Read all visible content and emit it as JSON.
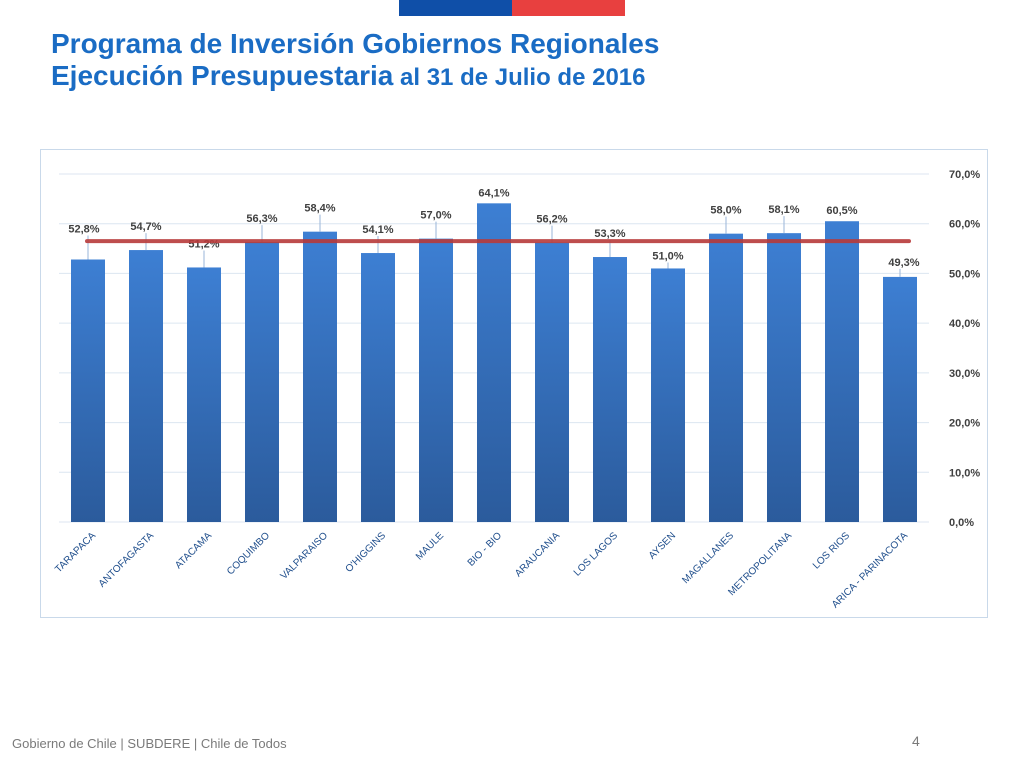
{
  "header": {
    "title_line1": "Programa de Inversión Gobiernos Regionales",
    "title_line2_bold": "Ejecución Presupuestaria",
    "title_line2_rest": " al 31 de Julio de 2016"
  },
  "colors": {
    "title": "#1a6cc4",
    "bar": "#3a78c9",
    "average_line": "#b83a3a",
    "flag_blue": "#0f4fa8",
    "flag_red": "#e8403f"
  },
  "chart_data": {
    "type": "bar",
    "title": "",
    "categories": [
      "TARAPACA",
      "ANTOFAGASTA",
      "ATACAMA",
      "COQUIMBO",
      "VALPARAISO",
      "O'HIGGINS",
      "MAULE",
      "BIO - BIO",
      "ARAUCANIA",
      "LOS LAGOS",
      "AYSEN",
      "MAGALLANES",
      "METROPOLITANA",
      "LOS RIOS",
      "ARICA - PARINACOTA"
    ],
    "values": [
      52.8,
      54.7,
      51.2,
      56.3,
      58.4,
      54.1,
      57.0,
      64.1,
      56.2,
      53.3,
      51.0,
      58.0,
      58.1,
      60.5,
      49.3
    ],
    "value_labels": [
      "52,8%",
      "54,7%",
      "51,2%",
      "56,3%",
      "58,4%",
      "54,1%",
      "57,0%",
      "64,1%",
      "56,2%",
      "53,3%",
      "51,0%",
      "58,0%",
      "58,1%",
      "60,5%",
      "49,3%"
    ],
    "average_value": 56.5,
    "ylim": [
      0,
      70
    ],
    "yticks": [
      0,
      10,
      20,
      30,
      40,
      50,
      60,
      70
    ],
    "ytick_labels": [
      "0,0%",
      "10,0%",
      "20,0%",
      "30,0%",
      "40,0%",
      "50,0%",
      "60,0%",
      "70,0%"
    ],
    "y_axis_side": "right",
    "grid": true,
    "xlabel": "",
    "ylabel": ""
  },
  "footer": {
    "text": "Gobierno de Chile | SUBDERE | Chile de Todos",
    "page_number": "4"
  }
}
